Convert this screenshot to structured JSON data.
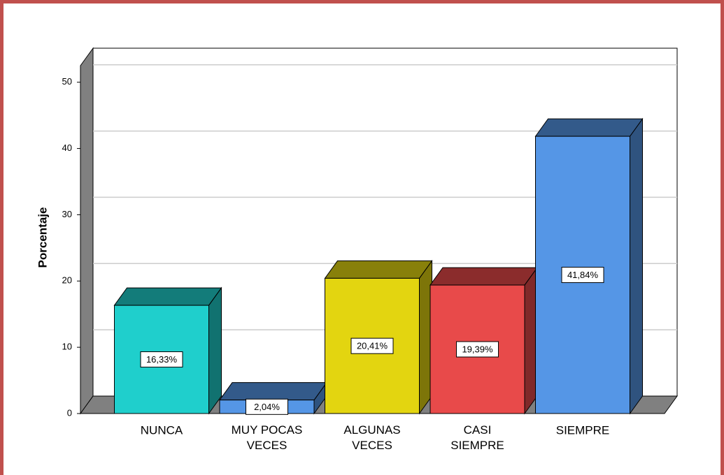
{
  "chart_data": {
    "type": "bar3d",
    "y_label": "Porcentaje",
    "categories": [
      "NUNCA",
      "MUY POCAS VECES",
      "ALGUNAS VECES",
      "CASI SIEMPRE",
      "SIEMPRE"
    ],
    "values": [
      16.33,
      2.04,
      20.41,
      19.39,
      41.84
    ],
    "value_labels": [
      "16,33%",
      "2,04%",
      "20,41%",
      "19,39%",
      "41,84%"
    ],
    "colors": [
      "#1fcfcc",
      "#5596e6",
      "#e3d510",
      "#e84a4a",
      "#5596e6"
    ],
    "ylim": [
      0,
      52.5
    ],
    "yticks": [
      0,
      10,
      20,
      30,
      40,
      50
    ],
    "grid": true
  }
}
